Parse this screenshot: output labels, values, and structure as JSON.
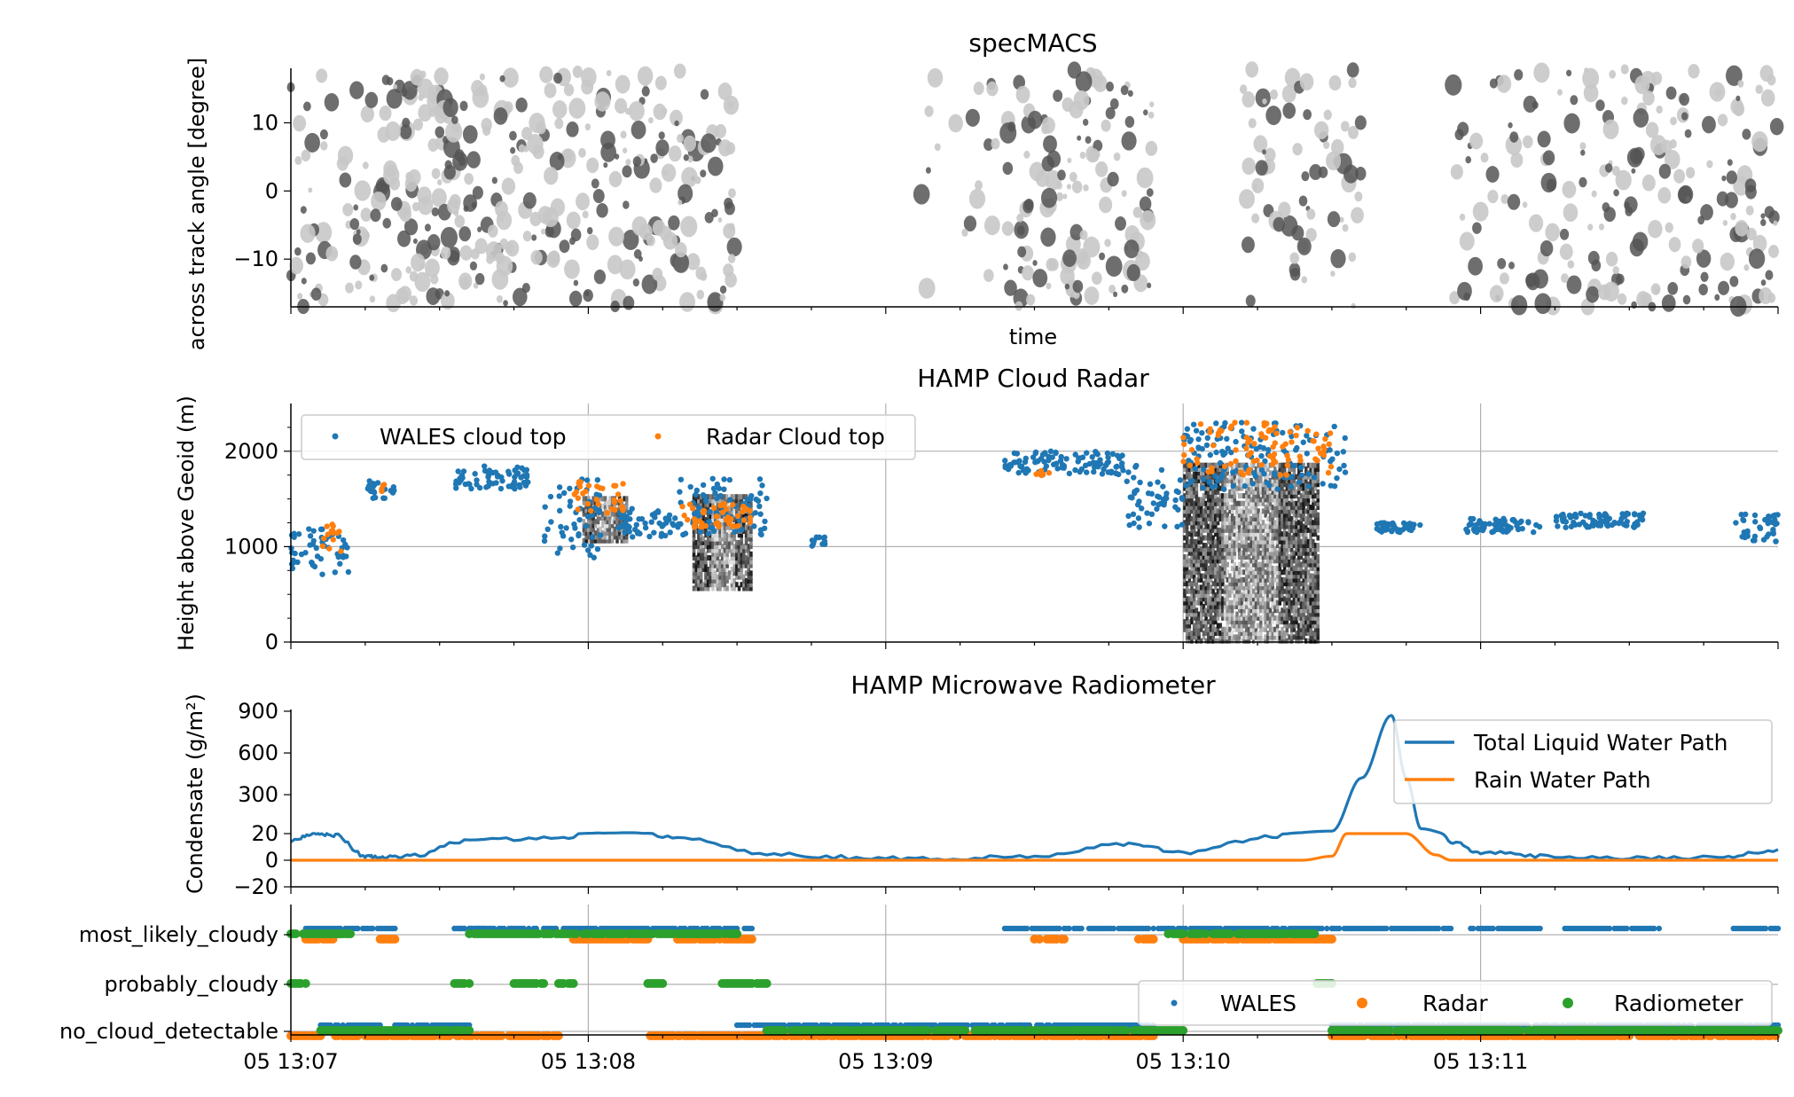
{
  "colors": {
    "wales": "#1f77b4",
    "radar": "#ff7f0e",
    "radiometer": "#2ca02c",
    "cloud_dark": "#555555",
    "cloud_light": "#c8c8c8",
    "grid": "#b0b0b0"
  },
  "chart_data": [
    {
      "type": "heatmap",
      "panel": "specmacs",
      "title": "specMACS",
      "xlabel": "time",
      "ylabel": "across track angle [degree]",
      "ylim": [
        -17,
        18
      ],
      "yticks": [
        10,
        0,
        -10
      ],
      "ytick_labels": [
        "10",
        "0",
        "−10"
      ],
      "xlim_minutes": [
        0,
        5
      ],
      "grid": false
    },
    {
      "type": "scatter",
      "panel": "radar",
      "title": "HAMP Cloud Radar",
      "ylabel": "Height above Geoid (m)",
      "ylim": [
        0,
        2500
      ],
      "yticks": [
        0,
        1000,
        2000
      ],
      "ytick_labels": [
        "0",
        "1000",
        "2000"
      ],
      "grid": true,
      "legend_position": "top-left",
      "series": [
        {
          "name": "WALES cloud top",
          "color": "#1f77b4"
        },
        {
          "name": "Radar Cloud top",
          "color": "#ff7f0e"
        }
      ]
    },
    {
      "type": "line",
      "panel": "radiometer",
      "title": "HAMP Microwave Radiometer",
      "ylabel": "Condensate (g/m²)",
      "yticks": [
        -20,
        0,
        20,
        300,
        600,
        900
      ],
      "ytick_labels": [
        "−20",
        "0",
        "20",
        "300",
        "600",
        "900"
      ],
      "scale": "linear below 20, linear above 20 with compressed segment",
      "legend_position": "top-right",
      "series": [
        {
          "name": "Total Liquid Water Path",
          "color": "#1f77b4",
          "x_minutes": [
            0.0,
            0.08,
            0.15,
            0.25,
            0.3,
            0.4,
            0.6,
            0.9,
            1.1,
            1.3,
            1.6,
            1.9,
            2.2,
            2.5,
            2.8,
            3.0,
            3.3,
            3.5,
            3.6,
            3.7,
            3.75,
            3.8,
            3.9,
            4.0,
            4.2,
            4.5,
            4.8,
            5.0
          ],
          "values": [
            15,
            20,
            19,
            3,
            2,
            3,
            15,
            17,
            26,
            17,
            5,
            2,
            1,
            3,
            12,
            6,
            18,
            38,
            420,
            870,
            420,
            55,
            14,
            6,
            3,
            2,
            2,
            8
          ]
        },
        {
          "name": "Rain Water Path",
          "color": "#ff7f0e",
          "x_minutes": [
            0.0,
            1.5,
            3.0,
            3.2,
            3.4,
            3.5,
            3.55,
            3.6,
            3.75,
            3.85,
            3.9,
            4.5,
            5.0
          ],
          "values": [
            0,
            0,
            0,
            0,
            0,
            3,
            20,
            20,
            20,
            4,
            0,
            0,
            0
          ]
        }
      ]
    },
    {
      "type": "scatter",
      "panel": "cloud_mask",
      "yticks_categories": [
        "most_likely_cloudy",
        "probably_cloudy",
        "no_cloud_detectable"
      ],
      "grid": true,
      "legend_position": "lower-right",
      "series": [
        {
          "name": "WALES",
          "color": "#1f77b4"
        },
        {
          "name": "Radar",
          "color": "#ff7f0e"
        },
        {
          "name": "Radiometer",
          "color": "#2ca02c"
        }
      ]
    }
  ],
  "xaxis": {
    "tick_labels": [
      "05 13:07",
      "05 13:08",
      "05 13:09",
      "05 13:10",
      "05 13:11"
    ],
    "tick_minutes": [
      0,
      1,
      2,
      3,
      4
    ],
    "range_minutes": [
      0,
      5
    ]
  }
}
